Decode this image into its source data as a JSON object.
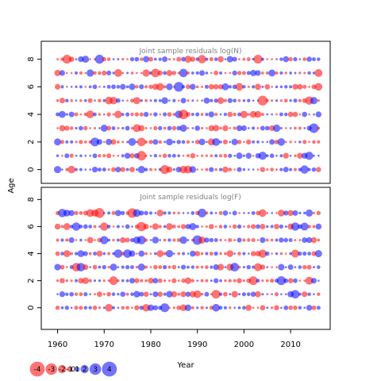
{
  "chart_data": {
    "type": "scatter",
    "description_type": "bubble residual plot",
    "ylabel": "Age",
    "xlabel": "Year",
    "x_ticks": [
      1960,
      1970,
      1980,
      1990,
      2000,
      2010
    ],
    "y_ticks": [
      0,
      2,
      4,
      6,
      8
    ],
    "xlim": [
      1956.5,
      2018.5
    ],
    "panels": [
      {
        "title": "Joint sample residuals log(N)",
        "ylim": [
          -1,
          9.3
        ],
        "ages": [
          0,
          1,
          2,
          3,
          4,
          5,
          6,
          7,
          8
        ],
        "years": [
          1960,
          2016
        ]
      },
      {
        "title": "Joint sample residuals log(F)",
        "ylim": [
          -1.6,
          8.9
        ],
        "ages": [
          0,
          1,
          2,
          3,
          4,
          5,
          6,
          7
        ],
        "years": [
          1960,
          2016
        ]
      }
    ],
    "colors": {
      "negative": "#ff0000",
      "positive": "#0000ff",
      "alpha": 0.55
    },
    "legend": {
      "placement": "bottom-left",
      "values": [
        -4,
        -3,
        -2,
        -1,
        0,
        1,
        2,
        3,
        4
      ],
      "labels": [
        "-4",
        "-3",
        "-2",
        "-1",
        "0",
        "1",
        "2",
        "3",
        "4"
      ]
    }
  }
}
